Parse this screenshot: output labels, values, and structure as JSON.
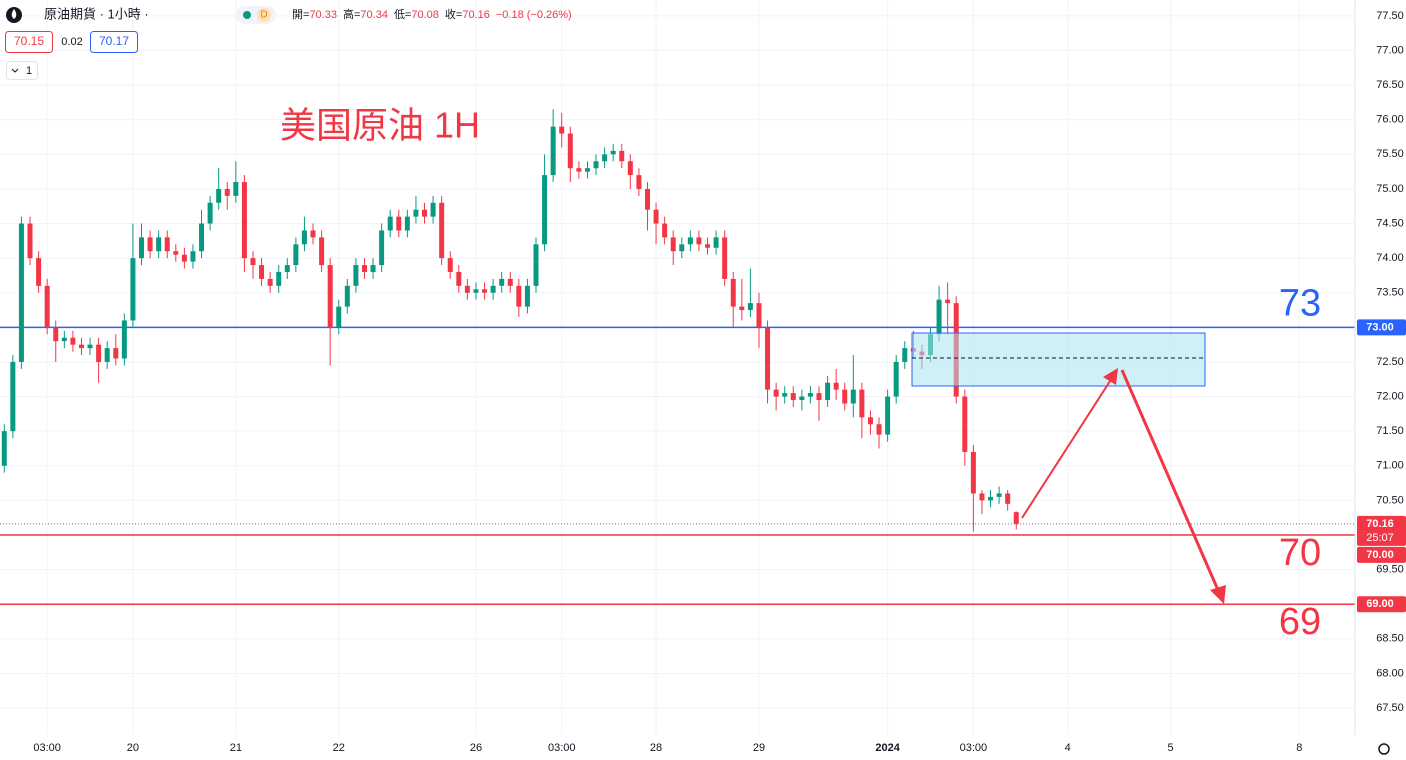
{
  "header": {
    "title": "原油期貨 · 1小時 ·",
    "badge": "D",
    "open_label": "開=",
    "open": 70.33,
    "high_label": "高=",
    "high": 70.34,
    "low_label": "低=",
    "low": 70.08,
    "close_label": "收=",
    "close": 70.16,
    "change": "−0.18 (−0.26%)",
    "bid": 70.15,
    "spread": 0.02,
    "ask": 70.17,
    "indicators": "1"
  },
  "chart_data": {
    "type": "candlestick",
    "annotation": "美国原油 1H",
    "up_color": "#089981",
    "down_color": "#f23645",
    "grid": true,
    "categories": [
      null,
      null,
      null,
      null,
      null,
      "03:00",
      null,
      null,
      null,
      null,
      null,
      null,
      null,
      null,
      null,
      "20",
      null,
      null,
      null,
      null,
      null,
      null,
      null,
      null,
      null,
      null,
      null,
      "21",
      null,
      null,
      null,
      null,
      null,
      null,
      null,
      null,
      null,
      null,
      null,
      "22",
      null,
      null,
      null,
      null,
      null,
      null,
      null,
      null,
      null,
      null,
      null,
      null,
      null,
      null,
      null,
      "26",
      null,
      null,
      null,
      null,
      null,
      null,
      null,
      null,
      null,
      "03:00",
      null,
      null,
      null,
      null,
      null,
      null,
      null,
      null,
      null,
      null,
      "28",
      null,
      null,
      null,
      null,
      null,
      null,
      null,
      null,
      null,
      null,
      null,
      "29",
      null,
      null,
      null,
      null,
      null,
      null,
      null,
      null,
      null,
      null,
      null,
      null,
      null,
      null,
      "2024",
      null,
      null,
      null,
      null,
      null,
      null,
      null,
      null,
      null,
      "03:00",
      null,
      null,
      null,
      null,
      null,
      null,
      null,
      null,
      null,
      null,
      "4",
      null,
      null,
      null,
      null,
      null,
      null,
      null,
      null,
      null,
      null,
      null,
      "5",
      null,
      null,
      null,
      null,
      null,
      null,
      null,
      null,
      null,
      null,
      null,
      null,
      null,
      null,
      "8",
      null,
      null,
      null,
      null,
      null,
      null
    ],
    "open": [
      71.0,
      71.5,
      72.5,
      74.5,
      74.0,
      73.6,
      73.0,
      72.8,
      72.85,
      72.75,
      72.7,
      72.75,
      72.5,
      72.7,
      72.55,
      73.1,
      74.0,
      74.3,
      74.1,
      74.3,
      74.1,
      74.05,
      73.95,
      74.1,
      74.5,
      74.8,
      75.0,
      74.9,
      75.1,
      74.0,
      73.9,
      73.7,
      73.6,
      73.8,
      73.9,
      74.2,
      74.4,
      74.3,
      73.9,
      73.0,
      73.3,
      73.6,
      73.9,
      73.8,
      73.9,
      74.4,
      74.6,
      74.4,
      74.6,
      74.7,
      74.6,
      74.8,
      74.0,
      73.8,
      73.6,
      73.5,
      73.55,
      73.5,
      73.6,
      73.7,
      73.6,
      73.3,
      73.6,
      74.2,
      75.2,
      75.9,
      75.8,
      75.3,
      75.25,
      75.3,
      75.4,
      75.5,
      75.55,
      75.4,
      75.2,
      75.0,
      74.7,
      74.5,
      74.3,
      74.1,
      74.2,
      74.3,
      74.2,
      74.15,
      74.3,
      73.7,
      73.3,
      73.25,
      73.35,
      73.0,
      72.1,
      72.0,
      72.05,
      71.95,
      72.0,
      72.05,
      71.95,
      72.2,
      72.1,
      71.9,
      72.1,
      71.7,
      71.6,
      71.45,
      72.0,
      72.5,
      72.7,
      72.65,
      72.6,
      72.9,
      73.4,
      73.35,
      72.0,
      71.2,
      70.6,
      70.5,
      70.55,
      70.6,
      70.33,
      null,
      null,
      null,
      null,
      null,
      null,
      null,
      null,
      null,
      null,
      null,
      null,
      null,
      null,
      null,
      null,
      null,
      null,
      null,
      null,
      null,
      null,
      null,
      null,
      null,
      null,
      null,
      null,
      null,
      null,
      null,
      null,
      null,
      null,
      null,
      null,
      null,
      null,
      null
    ],
    "high": [
      71.6,
      72.6,
      74.6,
      74.6,
      74.1,
      73.7,
      73.1,
      72.95,
      72.95,
      72.85,
      72.85,
      72.85,
      72.8,
      72.9,
      73.2,
      74.5,
      74.5,
      74.4,
      74.4,
      74.4,
      74.2,
      74.15,
      74.2,
      74.7,
      74.9,
      75.3,
      75.1,
      75.4,
      75.2,
      74.1,
      74.0,
      73.8,
      73.9,
      74.0,
      74.3,
      74.6,
      74.5,
      74.4,
      74.0,
      73.4,
      73.7,
      74.0,
      74.0,
      74.0,
      74.5,
      74.7,
      74.7,
      74.7,
      74.9,
      74.8,
      74.9,
      74.9,
      74.1,
      73.9,
      73.7,
      73.65,
      73.65,
      73.7,
      73.8,
      73.8,
      73.7,
      73.7,
      74.3,
      75.5,
      76.15,
      76.1,
      75.9,
      75.4,
      75.4,
      75.5,
      75.6,
      75.65,
      75.65,
      75.5,
      75.3,
      75.1,
      74.8,
      74.6,
      74.4,
      74.3,
      74.4,
      74.4,
      74.3,
      74.4,
      74.4,
      73.8,
      73.7,
      73.85,
      73.5,
      73.1,
      72.2,
      72.15,
      72.15,
      72.1,
      72.15,
      72.15,
      72.3,
      72.4,
      72.2,
      72.6,
      72.2,
      71.8,
      71.7,
      72.1,
      72.6,
      72.8,
      72.95,
      72.75,
      73.0,
      73.6,
      73.65,
      73.45,
      72.1,
      71.3,
      70.65,
      70.65,
      70.7,
      70.65,
      70.34,
      null,
      null,
      null,
      null,
      null,
      null,
      null,
      null,
      null,
      null,
      null,
      null,
      null,
      null,
      null,
      null,
      null,
      null,
      null,
      null,
      null,
      null,
      null,
      null,
      null,
      null,
      null,
      null,
      null,
      null,
      null,
      null,
      null,
      null,
      null,
      null,
      null,
      null,
      null
    ],
    "low": [
      70.9,
      71.4,
      72.4,
      73.9,
      73.5,
      72.9,
      72.5,
      72.7,
      72.65,
      72.6,
      72.6,
      72.2,
      72.4,
      72.45,
      72.45,
      73.0,
      73.9,
      74.0,
      74.0,
      74.0,
      73.95,
      73.85,
      73.85,
      74.0,
      74.4,
      74.7,
      74.7,
      74.8,
      73.8,
      73.7,
      73.6,
      73.5,
      73.5,
      73.7,
      73.8,
      74.1,
      74.2,
      73.8,
      72.45,
      72.9,
      73.2,
      73.5,
      73.7,
      73.7,
      73.8,
      74.3,
      74.3,
      74.3,
      74.5,
      74.5,
      74.5,
      73.9,
      73.7,
      73.5,
      73.4,
      73.4,
      73.4,
      73.4,
      73.5,
      73.5,
      73.15,
      73.2,
      73.5,
      74.1,
      75.1,
      75.6,
      75.1,
      75.15,
      75.15,
      75.2,
      75.3,
      75.4,
      75.3,
      75.0,
      74.9,
      74.4,
      74.2,
      74.2,
      73.9,
      74.0,
      74.1,
      74.1,
      74.05,
      74.05,
      73.6,
      73.0,
      73.1,
      73.15,
      72.7,
      71.9,
      71.8,
      71.9,
      71.85,
      71.8,
      71.9,
      71.65,
      71.85,
      71.95,
      71.8,
      71.7,
      71.4,
      71.45,
      71.25,
      71.35,
      71.9,
      72.4,
      72.55,
      72.4,
      72.5,
      72.8,
      72.9,
      71.9,
      71.0,
      70.05,
      70.3,
      70.4,
      70.45,
      70.35,
      70.08,
      null,
      null,
      null,
      null,
      null,
      null,
      null,
      null,
      null,
      null,
      null,
      null,
      null,
      null,
      null,
      null,
      null,
      null,
      null,
      null,
      null,
      null,
      null,
      null,
      null,
      null,
      null,
      null,
      null,
      null,
      null,
      null,
      null,
      null,
      null,
      null,
      null,
      null,
      null
    ],
    "close": [
      71.5,
      72.5,
      74.5,
      74.0,
      73.6,
      73.0,
      72.8,
      72.85,
      72.75,
      72.7,
      72.75,
      72.5,
      72.7,
      72.55,
      73.1,
      74.0,
      74.3,
      74.1,
      74.3,
      74.1,
      74.05,
      73.95,
      74.1,
      74.5,
      74.8,
      75.0,
      74.9,
      75.1,
      74.0,
      73.9,
      73.7,
      73.6,
      73.8,
      73.9,
      74.2,
      74.4,
      74.3,
      73.9,
      73.0,
      73.3,
      73.6,
      73.9,
      73.8,
      73.9,
      74.4,
      74.6,
      74.4,
      74.6,
      74.7,
      74.6,
      74.8,
      74.0,
      73.8,
      73.6,
      73.5,
      73.55,
      73.5,
      73.6,
      73.7,
      73.6,
      73.3,
      73.6,
      74.2,
      75.2,
      75.9,
      75.8,
      75.3,
      75.25,
      75.3,
      75.4,
      75.5,
      75.55,
      75.4,
      75.2,
      75.0,
      74.7,
      74.5,
      74.3,
      74.1,
      74.2,
      74.3,
      74.2,
      74.15,
      74.3,
      73.7,
      73.3,
      73.25,
      73.35,
      73.0,
      72.1,
      72.0,
      72.05,
      71.95,
      72.0,
      72.05,
      71.95,
      72.2,
      72.1,
      71.9,
      72.1,
      71.7,
      71.6,
      71.45,
      72.0,
      72.5,
      72.7,
      72.65,
      72.6,
      72.9,
      73.4,
      73.35,
      72.0,
      71.2,
      70.6,
      70.5,
      70.55,
      70.6,
      70.45,
      70.16,
      null,
      null,
      null,
      null,
      null,
      null,
      null,
      null,
      null,
      null,
      null,
      null,
      null,
      null,
      null,
      null,
      null,
      null,
      null,
      null,
      null,
      null,
      null,
      null,
      null,
      null,
      null,
      null,
      null,
      null,
      null,
      null,
      null,
      null,
      null,
      null,
      null,
      null,
      null
    ],
    "ylim": [
      67.11,
      77.73
    ],
    "yticks": [
      {
        "value": 67.5,
        "label": "67.50"
      },
      {
        "value": 68,
        "label": "68.00"
      },
      {
        "value": 68.5,
        "label": "68.50"
      },
      {
        "value": 69,
        "label": "69.00"
      },
      {
        "value": 69.5,
        "label": "69.50"
      },
      {
        "value": 70,
        "label": "70.00"
      },
      {
        "value": 70.5,
        "label": "70.50"
      },
      {
        "value": 71,
        "label": "71.00"
      },
      {
        "value": 71.5,
        "label": "71.50"
      },
      {
        "value": 72,
        "label": "72.00"
      },
      {
        "value": 72.5,
        "label": "72.50"
      },
      {
        "value": 73,
        "label": "73.00"
      },
      {
        "value": 73.5,
        "label": "73.50"
      },
      {
        "value": 74,
        "label": "74.00"
      },
      {
        "value": 74.5,
        "label": "74.50"
      },
      {
        "value": 75,
        "label": "75.00"
      },
      {
        "value": 75.5,
        "label": "75.50"
      },
      {
        "value": 76,
        "label": "76.00"
      },
      {
        "value": 76.5,
        "label": "76.50"
      },
      {
        "value": 77,
        "label": "77.00"
      },
      {
        "value": 77.5,
        "label": "77.50"
      }
    ],
    "hlines": [
      {
        "value": 73,
        "label": "73.00",
        "annotation": "73",
        "color": "#2962ff"
      },
      {
        "value": 70,
        "label": "70.00",
        "annotation": "70",
        "color": "#f23645"
      },
      {
        "value": 69,
        "label": "69.00",
        "annotation": "69",
        "color": "#f23645"
      }
    ],
    "last_price": {
      "value": 70.16,
      "label": "70.16",
      "countdown": "25:07",
      "color": "#f23645"
    }
  }
}
